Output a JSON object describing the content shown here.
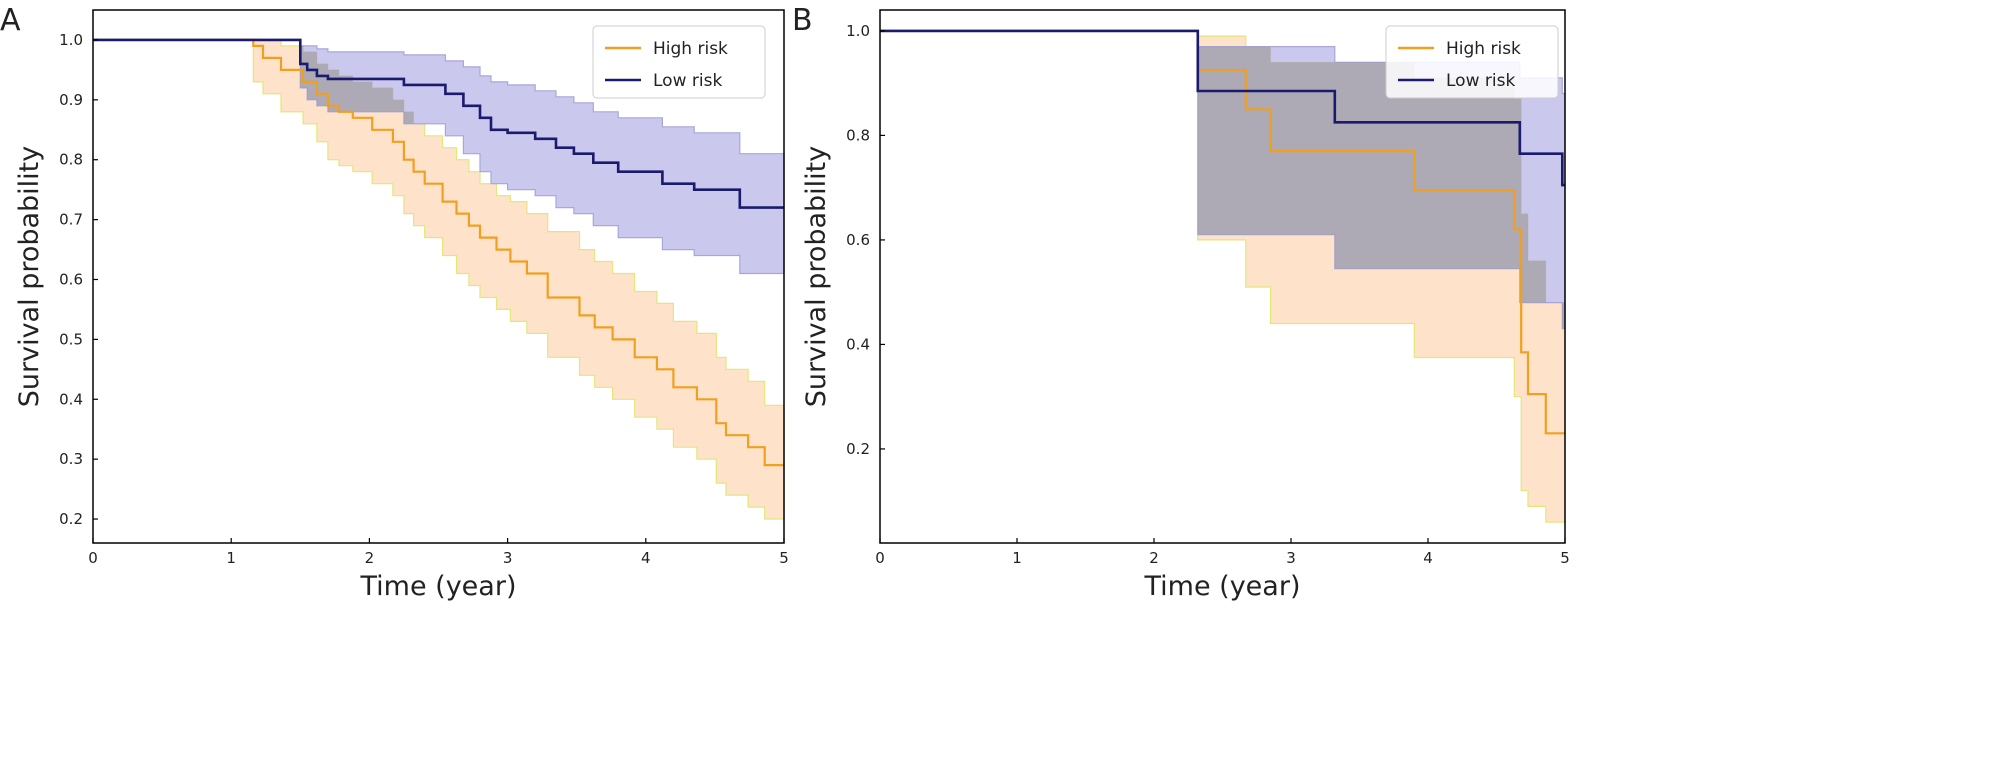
{
  "chart_data": [
    {
      "panel": "A",
      "type": "line",
      "subtype": "kaplan-meier",
      "title": "",
      "xlabel": "Time (year)",
      "ylabel": "Survival probability",
      "xlim": [
        0,
        5
      ],
      "ylim": [
        0.16,
        1.05
      ],
      "xticks": [
        "0",
        "1",
        "2",
        "3",
        "4",
        "5"
      ],
      "yticks": [
        "1.0",
        "0.9",
        "0.8",
        "0.7",
        "0.6",
        "0.5",
        "0.4",
        "0.3",
        "0.2"
      ],
      "grid": false,
      "legend": "top-right",
      "series": [
        {
          "name": "High risk",
          "color": "#f0a020",
          "band_color": "#ffd8b8",
          "band_edge": "#e0e878",
          "x": [
            0,
            1.16,
            1.23,
            1.36,
            1.52,
            1.62,
            1.7,
            1.78,
            1.88,
            2.02,
            2.17,
            2.25,
            2.32,
            2.4,
            2.53,
            2.63,
            2.72,
            2.8,
            2.92,
            3.02,
            3.14,
            3.29,
            3.52,
            3.63,
            3.76,
            3.92,
            4.08,
            4.2,
            4.37,
            4.51,
            4.58,
            4.74,
            4.86,
            5
          ],
          "y": [
            1.0,
            0.99,
            0.97,
            0.95,
            0.93,
            0.91,
            0.89,
            0.88,
            0.87,
            0.85,
            0.83,
            0.8,
            0.78,
            0.76,
            0.73,
            0.71,
            0.69,
            0.67,
            0.65,
            0.63,
            0.61,
            0.57,
            0.54,
            0.52,
            0.5,
            0.47,
            0.45,
            0.42,
            0.4,
            0.36,
            0.34,
            0.32,
            0.29,
            0.29
          ],
          "lower": [
            1.0,
            0.93,
            0.91,
            0.88,
            0.86,
            0.83,
            0.8,
            0.79,
            0.78,
            0.76,
            0.74,
            0.71,
            0.69,
            0.67,
            0.64,
            0.61,
            0.59,
            0.57,
            0.55,
            0.53,
            0.51,
            0.47,
            0.44,
            0.42,
            0.4,
            0.37,
            0.35,
            0.32,
            0.3,
            0.26,
            0.24,
            0.22,
            0.2,
            0.2
          ],
          "upper": [
            1.0,
            1.0,
            1.0,
            0.99,
            0.98,
            0.96,
            0.95,
            0.94,
            0.93,
            0.92,
            0.9,
            0.88,
            0.86,
            0.84,
            0.82,
            0.8,
            0.78,
            0.76,
            0.74,
            0.73,
            0.71,
            0.68,
            0.65,
            0.63,
            0.61,
            0.58,
            0.56,
            0.53,
            0.51,
            0.47,
            0.45,
            0.43,
            0.39,
            0.39
          ]
        },
        {
          "name": "Low risk",
          "color": "#1a1a6e",
          "band_color": "#b9b6e8",
          "band_edge": "#a9a6da",
          "x": [
            0,
            1.5,
            1.55,
            1.62,
            1.7,
            2.25,
            2.55,
            2.68,
            2.8,
            2.88,
            3.0,
            3.2,
            3.35,
            3.48,
            3.62,
            3.8,
            4.12,
            4.35,
            4.68,
            5
          ],
          "y": [
            1.0,
            0.96,
            0.95,
            0.94,
            0.935,
            0.925,
            0.91,
            0.89,
            0.87,
            0.85,
            0.845,
            0.835,
            0.82,
            0.81,
            0.795,
            0.78,
            0.76,
            0.75,
            0.72,
            0.72
          ],
          "lower": [
            1.0,
            0.92,
            0.9,
            0.89,
            0.88,
            0.86,
            0.84,
            0.81,
            0.78,
            0.76,
            0.75,
            0.74,
            0.72,
            0.71,
            0.69,
            0.67,
            0.65,
            0.64,
            0.61,
            0.61
          ],
          "upper": [
            1.0,
            0.99,
            0.99,
            0.985,
            0.98,
            0.975,
            0.965,
            0.955,
            0.94,
            0.93,
            0.925,
            0.915,
            0.905,
            0.895,
            0.88,
            0.87,
            0.855,
            0.845,
            0.81,
            0.81
          ]
        }
      ]
    },
    {
      "panel": "B",
      "type": "line",
      "subtype": "kaplan-meier",
      "title": "",
      "xlabel": "Time (year)",
      "ylabel": "Survival probability",
      "xlim": [
        0,
        5
      ],
      "ylim": [
        0.02,
        1.04
      ],
      "xticks": [
        "0",
        "1",
        "2",
        "3",
        "4",
        "5"
      ],
      "yticks": [
        "1.0",
        "0.8",
        "0.6",
        "0.4",
        "0.2"
      ],
      "grid": false,
      "legend": "top-right",
      "series": [
        {
          "name": "High risk",
          "color": "#f0a020",
          "band_color": "#ffd8b8",
          "band_edge": "#e0e878",
          "x": [
            0,
            2.32,
            2.67,
            2.85,
            3.9,
            4.63,
            4.68,
            4.73,
            4.86,
            5
          ],
          "y": [
            1.0,
            0.925,
            0.85,
            0.77,
            0.695,
            0.62,
            0.385,
            0.305,
            0.23,
            0.23
          ],
          "lower": [
            1.0,
            0.6,
            0.51,
            0.44,
            0.375,
            0.3,
            0.12,
            0.09,
            0.06,
            0.06
          ],
          "upper": [
            1.0,
            0.99,
            0.97,
            0.94,
            0.91,
            0.87,
            0.65,
            0.56,
            0.48,
            0.48
          ]
        },
        {
          "name": "Low risk",
          "color": "#1a1a6e",
          "band_color": "#b9b6e8",
          "band_edge": "#a9a6da",
          "x": [
            0,
            2.32,
            3.32,
            4.67,
            4.98,
            5
          ],
          "y": [
            1.0,
            0.885,
            0.825,
            0.765,
            0.705,
            0.705
          ],
          "lower": [
            1.0,
            0.61,
            0.545,
            0.48,
            0.43,
            0.43
          ],
          "upper": [
            1.0,
            0.97,
            0.94,
            0.91,
            0.88,
            0.88
          ]
        }
      ]
    }
  ]
}
